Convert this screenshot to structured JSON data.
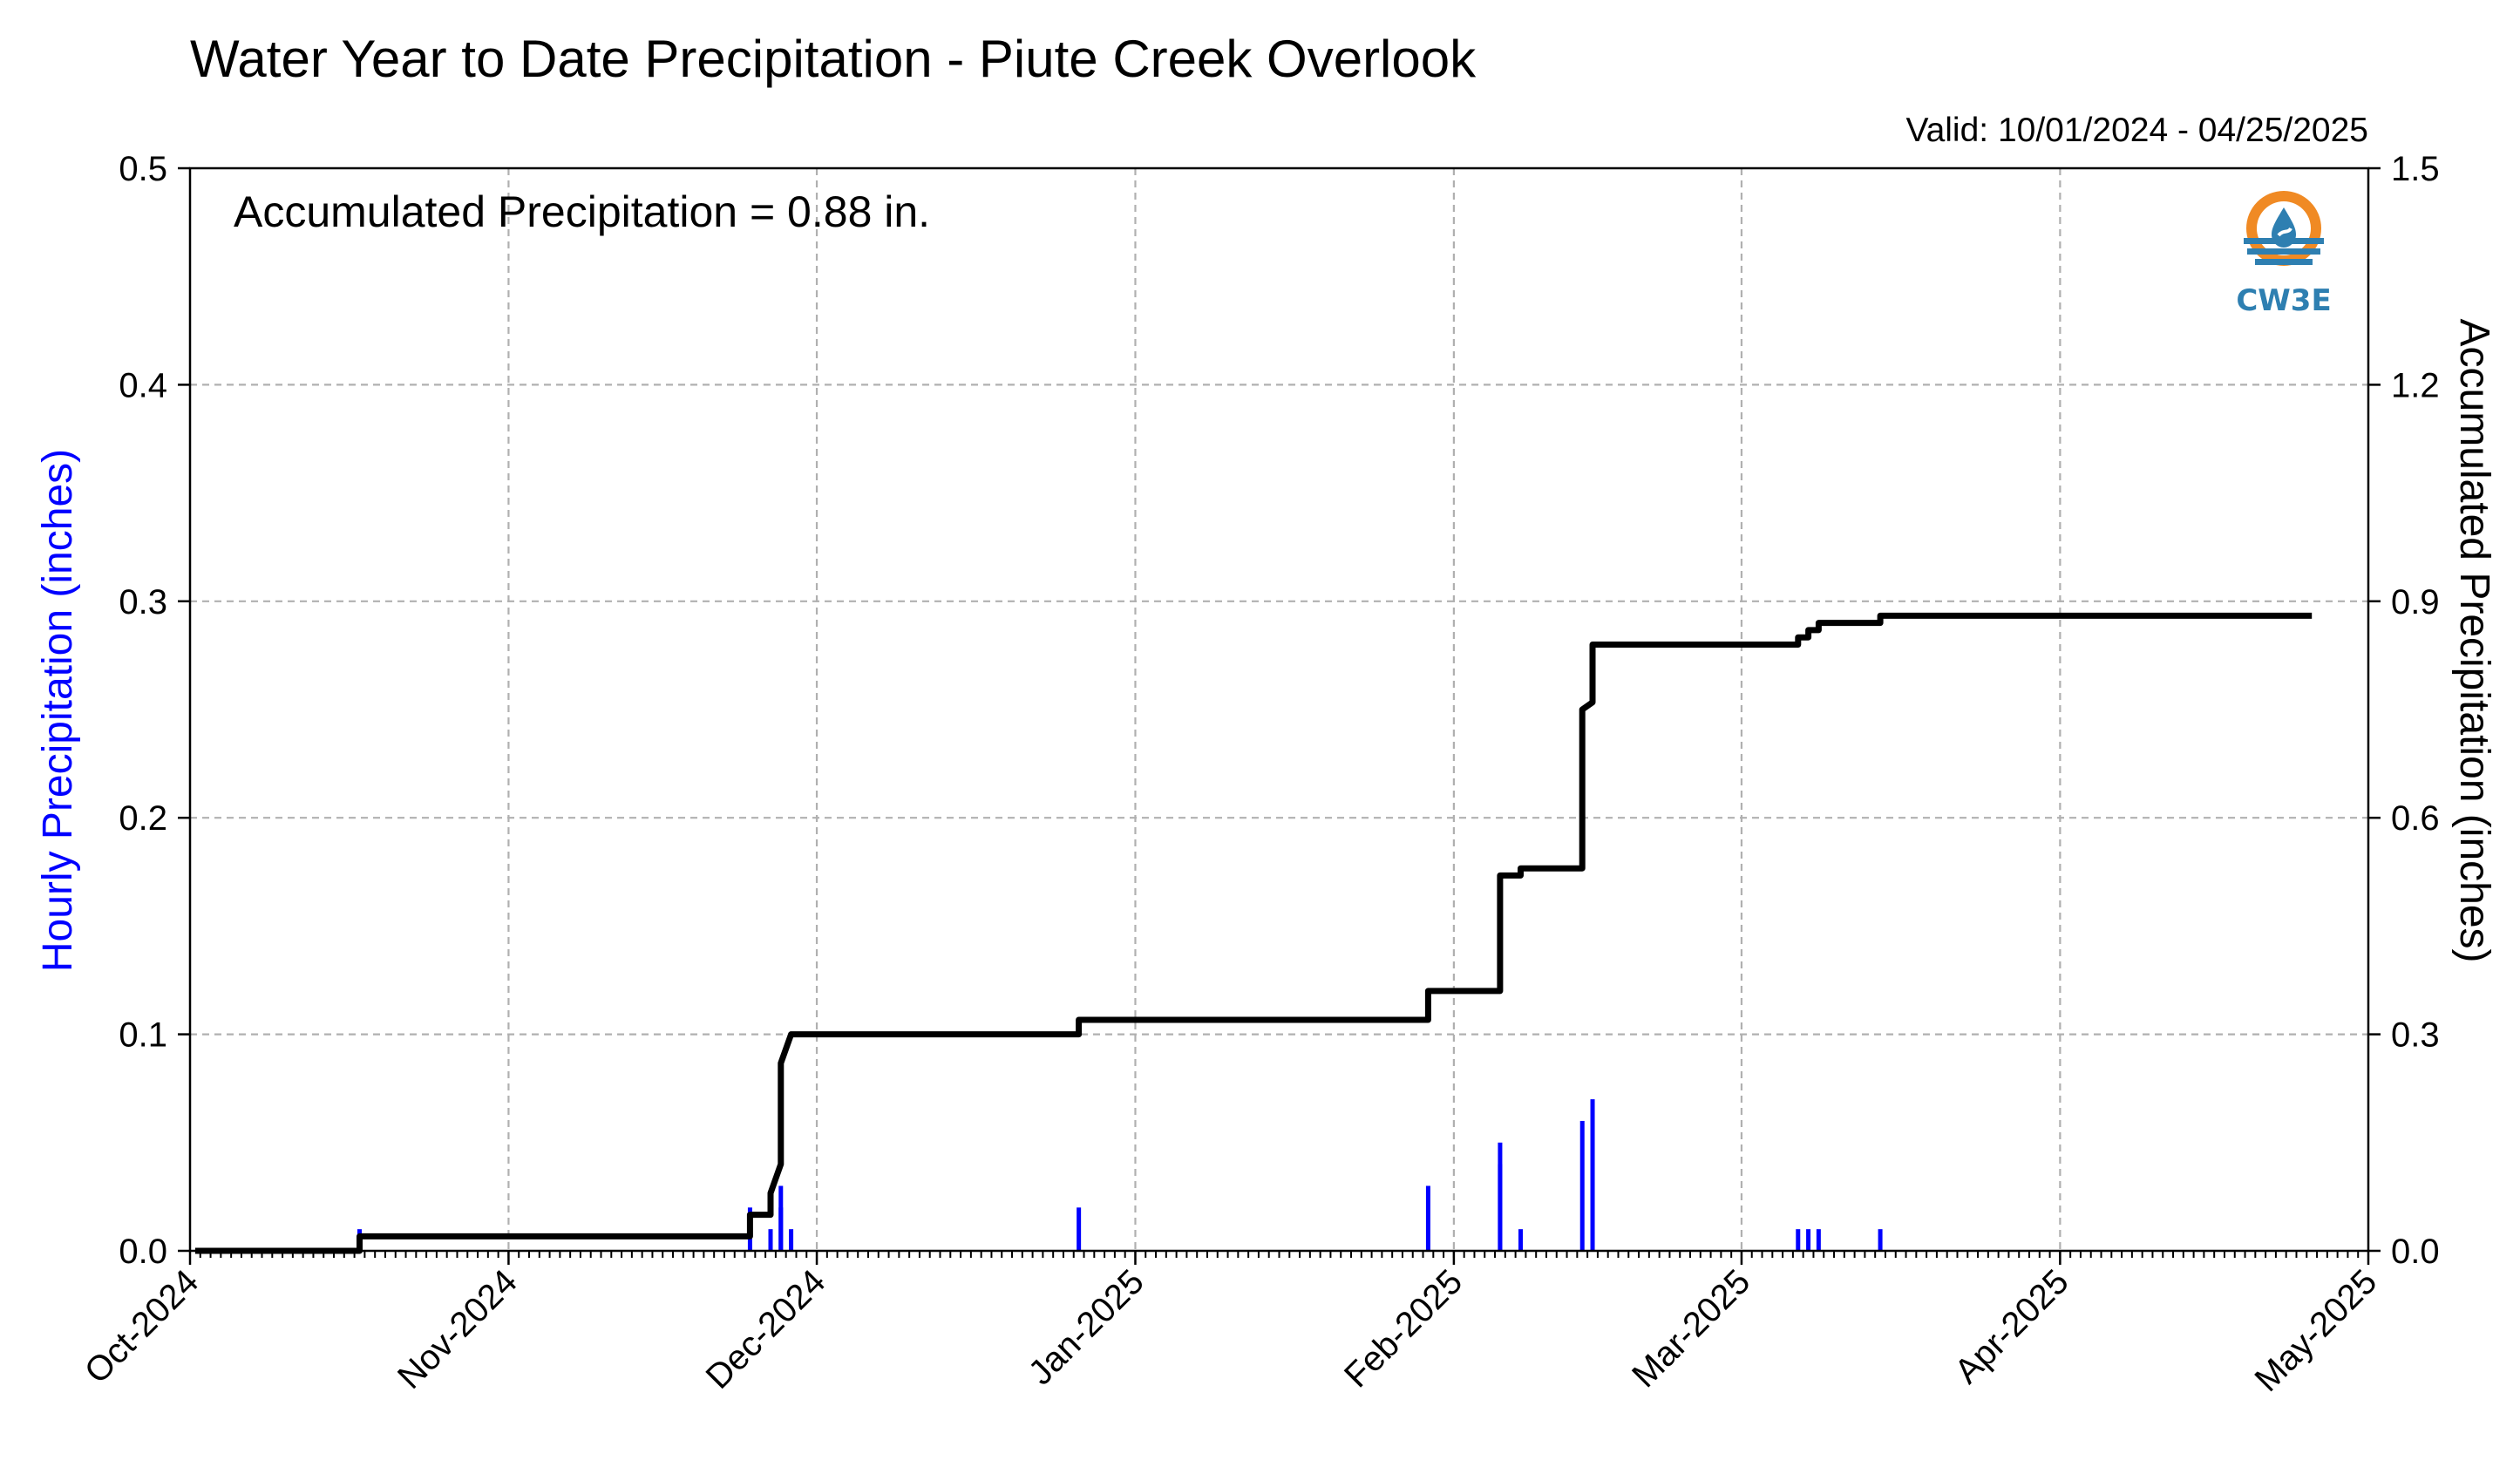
{
  "chart_data": {
    "type": "bar+line",
    "title": "Water Year to Date Precipitation - Piute Creek Overlook",
    "valid_label": "Valid: 10/01/2024 - 04/25/2025",
    "annotation": "Accumulated Precipitation = 0.88 in.",
    "logo_text": "CW3E",
    "ylabel_left": "Hourly Precipitation (inches)",
    "ylabel_right": "Accumulated Precipitation (inches)",
    "ylim_left": [
      0,
      0.5
    ],
    "ylim_right": [
      0,
      1.5
    ],
    "yticks_left": [
      0.0,
      0.1,
      0.2,
      0.3,
      0.4,
      0.5
    ],
    "yticks_left_labels": [
      "0.0",
      "0.1",
      "0.2",
      "0.3",
      "0.4",
      "0.5"
    ],
    "yticks_right": [
      0.0,
      0.3,
      0.6,
      0.9,
      1.2,
      1.5
    ],
    "yticks_right_labels": [
      "0.0",
      "0.3",
      "0.6",
      "0.9",
      "1.2",
      "1.5"
    ],
    "xlim": [
      "2024-10-01",
      "2025-05-01"
    ],
    "xticks": [
      "2024-10-01",
      "2024-11-01",
      "2024-12-01",
      "2025-01-01",
      "2025-02-01",
      "2025-03-01",
      "2025-04-01",
      "2025-05-01"
    ],
    "xtick_labels": [
      "Oct-2024",
      "Nov-2024",
      "Dec-2024",
      "Jan-2025",
      "Feb-2025",
      "Mar-2025",
      "Apr-2025",
      "May-2025"
    ],
    "grid": true,
    "colors": {
      "hourly": "#0000ff",
      "accumulated": "#000000",
      "grid": "#b0b0b0",
      "logo_orange": "#f08a24",
      "logo_blue": "#2e7fb1"
    },
    "series": [
      {
        "name": "Hourly Precipitation",
        "axis": "left",
        "type": "bar",
        "points": [
          {
            "date": "2024-10-17",
            "value": 0.01
          },
          {
            "date": "2024-11-24",
            "value": 0.02
          },
          {
            "date": "2024-11-26",
            "value": 0.01
          },
          {
            "date": "2024-11-27",
            "value": 0.02
          },
          {
            "date": "2024-11-27",
            "value": 0.03
          },
          {
            "date": "2024-11-28",
            "value": 0.01
          },
          {
            "date": "2024-12-26",
            "value": 0.02
          },
          {
            "date": "2025-01-29",
            "value": 0.03
          },
          {
            "date": "2025-02-05",
            "value": 0.05
          },
          {
            "date": "2025-02-05",
            "value": 0.04
          },
          {
            "date": "2025-02-07",
            "value": 0.01
          },
          {
            "date": "2025-02-13",
            "value": 0.06
          },
          {
            "date": "2025-02-14",
            "value": 0.07
          },
          {
            "date": "2025-03-06",
            "value": 0.01
          },
          {
            "date": "2025-03-07",
            "value": 0.01
          },
          {
            "date": "2025-03-08",
            "value": 0.01
          },
          {
            "date": "2025-03-14",
            "value": 0.01
          }
        ]
      },
      {
        "name": "Accumulated Precipitation",
        "axis": "right",
        "type": "step",
        "points": [
          {
            "date": "2024-10-01",
            "value": 0.0
          },
          {
            "date": "2024-10-17",
            "value": 0.0
          },
          {
            "date": "2024-10-17",
            "value": 0.02
          },
          {
            "date": "2024-11-24",
            "value": 0.02
          },
          {
            "date": "2024-11-24",
            "value": 0.05
          },
          {
            "date": "2024-11-26",
            "value": 0.05
          },
          {
            "date": "2024-11-26",
            "value": 0.08
          },
          {
            "date": "2024-11-27",
            "value": 0.12
          },
          {
            "date": "2024-11-27",
            "value": 0.26
          },
          {
            "date": "2024-11-28",
            "value": 0.3
          },
          {
            "date": "2024-12-26",
            "value": 0.3
          },
          {
            "date": "2024-12-26",
            "value": 0.32
          },
          {
            "date": "2025-01-29",
            "value": 0.32
          },
          {
            "date": "2025-01-29",
            "value": 0.36
          },
          {
            "date": "2025-02-05",
            "value": 0.36
          },
          {
            "date": "2025-02-05",
            "value": 0.41
          },
          {
            "date": "2025-02-05",
            "value": 0.52
          },
          {
            "date": "2025-02-07",
            "value": 0.52
          },
          {
            "date": "2025-02-07",
            "value": 0.53
          },
          {
            "date": "2025-02-13",
            "value": 0.53
          },
          {
            "date": "2025-02-13",
            "value": 0.63
          },
          {
            "date": "2025-02-13",
            "value": 0.75
          },
          {
            "date": "2025-02-14",
            "value": 0.76
          },
          {
            "date": "2025-02-14",
            "value": 0.84
          },
          {
            "date": "2025-03-06",
            "value": 0.84
          },
          {
            "date": "2025-03-06",
            "value": 0.85
          },
          {
            "date": "2025-03-07",
            "value": 0.85
          },
          {
            "date": "2025-03-07",
            "value": 0.86
          },
          {
            "date": "2025-03-08",
            "value": 0.86
          },
          {
            "date": "2025-03-08",
            "value": 0.87
          },
          {
            "date": "2025-03-14",
            "value": 0.87
          },
          {
            "date": "2025-03-14",
            "value": 0.88
          },
          {
            "date": "2025-04-25",
            "value": 0.88
          }
        ]
      }
    ]
  }
}
